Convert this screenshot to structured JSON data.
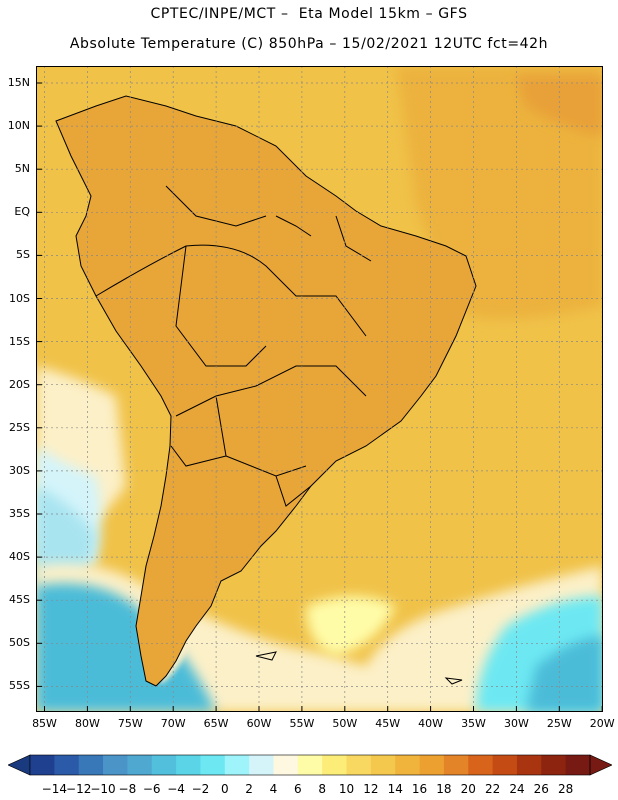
{
  "title": {
    "line1": "CPTEC/INPE/MCT –  Eta Model 15km – GFS",
    "line2": "Absolute Temperature (C) 850hPa – 15/02/2021 12UTC fct=42h"
  },
  "axes": {
    "lat_labels": [
      "15N",
      "10N",
      "5N",
      "EQ",
      "5S",
      "10S",
      "15S",
      "20S",
      "25S",
      "30S",
      "35S",
      "40S",
      "45S",
      "50S",
      "55S"
    ],
    "lon_labels": [
      "85W",
      "80W",
      "75W",
      "70W",
      "65W",
      "60W",
      "55W",
      "50W",
      "45W",
      "40W",
      "35W",
      "30W",
      "25W",
      "20W"
    ]
  },
  "colorbar": {
    "labels": [
      "-14",
      "-12",
      "-10",
      "-8",
      "-6",
      "-4",
      "-2",
      "0",
      "2",
      "4",
      "6",
      "8",
      "10",
      "12",
      "14",
      "16",
      "18",
      "20",
      "22",
      "24",
      "26",
      "28"
    ],
    "colors": [
      "#1f3f8f",
      "#2a5aa8",
      "#3878b8",
      "#4a94c8",
      "#4fa8d0",
      "#52c0dc",
      "#5ad4e6",
      "#6de8f2",
      "#9ef4fa",
      "#d4f4fa",
      "#fff8e0",
      "#fffca8",
      "#fcec78",
      "#f8d860",
      "#f4c84c",
      "#f0b43c",
      "#eca030",
      "#e48428",
      "#d8641c",
      "#c44c14",
      "#a83410",
      "#8c2410",
      "#781a14"
    ],
    "over_color": "#781a14",
    "under_color": "#1a3a80"
  },
  "map": {
    "ocean_color": "#f0c248",
    "land_color": "#e8a538",
    "interior_warm_color": "#dc8632",
    "hot_core_color": "#d4702c",
    "cool_shelf_color": "#fcf0c8",
    "cold_south_color": "#4bbcd8",
    "pacific_cold_color": "#a8e4f0",
    "border_color": "#000000"
  }
}
